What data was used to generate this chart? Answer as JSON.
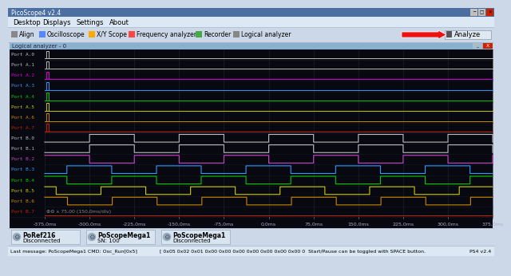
{
  "title": "PicoScope4 v2.4",
  "menubar_items": [
    "Desktop",
    "Displays",
    "Settings",
    "About"
  ],
  "toolbar_items": [
    "Align",
    "Oscilloscope",
    "X/Y Scope",
    "Frequency analyzer",
    "Recorder",
    "Logical analyzer"
  ],
  "analyze_button": "Analyze",
  "subwindow_title": "Logical analyzer - 0",
  "ui_bg": "#ccd8e8",
  "ui_bg2": "#dce8f4",
  "channel_names": [
    "Port A.0",
    "Port A.1",
    "Port A.2",
    "Port A.3",
    "Port A.4",
    "Port A.5",
    "Port A.6",
    "Port A.7",
    "Port B.0",
    "Port B.1",
    "Port B.2",
    "Port B.3",
    "Port B.4",
    "Port B.5",
    "Port B.6",
    "Port B.7"
  ],
  "channel_colors": [
    "#bbbbbb",
    "#bbbbbb",
    "#dd00dd",
    "#3399ff",
    "#00cc00",
    "#cccc00",
    "#cc8800",
    "#cc2200",
    "#bbbbbb",
    "#bbbbbb",
    "#cc44cc",
    "#3399ff",
    "#00cc00",
    "#cccc00",
    "#cc8800",
    "#cc2200"
  ],
  "x_min": -375,
  "x_max": 375,
  "x_ticks": [
    -375,
    -300,
    -225,
    -150,
    -75,
    0,
    75,
    150,
    225,
    300,
    375
  ],
  "x_tick_labels": [
    "-375,0ms",
    "-300,0ms",
    "-225,0ms",
    "-150,0ms",
    "-75,0ms",
    "0,0ms",
    "75,0ms",
    "150,0ms",
    "225,0ms",
    "300,0ms",
    "375,0ms"
  ],
  "status_left": "Last message: PoScopeMega1 CMD: Osc_Run[0x5]",
  "status_mid": "[ 0x05 0x02 0x01 0x00 0x00 0x00 0x00 0x00 0x00 0x00 0  Start/Pause can be toggled with SPACE button.",
  "status_right": "PS4 v2.4",
  "footer_items": [
    "PoRef216\nDisconnected",
    "PoScopeMega1\nSN: 100",
    "PoScopeMega1\nDisconnected"
  ],
  "square_wave_period": 150,
  "B_phases": [
    0,
    0,
    75,
    112,
    37,
    19,
    38,
    0
  ],
  "B_flat": [
    false,
    false,
    false,
    false,
    false,
    false,
    false,
    true
  ],
  "toolbar_icon_colors": [
    "#888888",
    "#5588ff",
    "#ffaa00",
    "#ff4444",
    "#44aa44",
    "#888888"
  ],
  "title_bar_color": "#4a6fa0",
  "subwin_bar_color": "#8ab0d0",
  "plot_bg_color": "#080810"
}
